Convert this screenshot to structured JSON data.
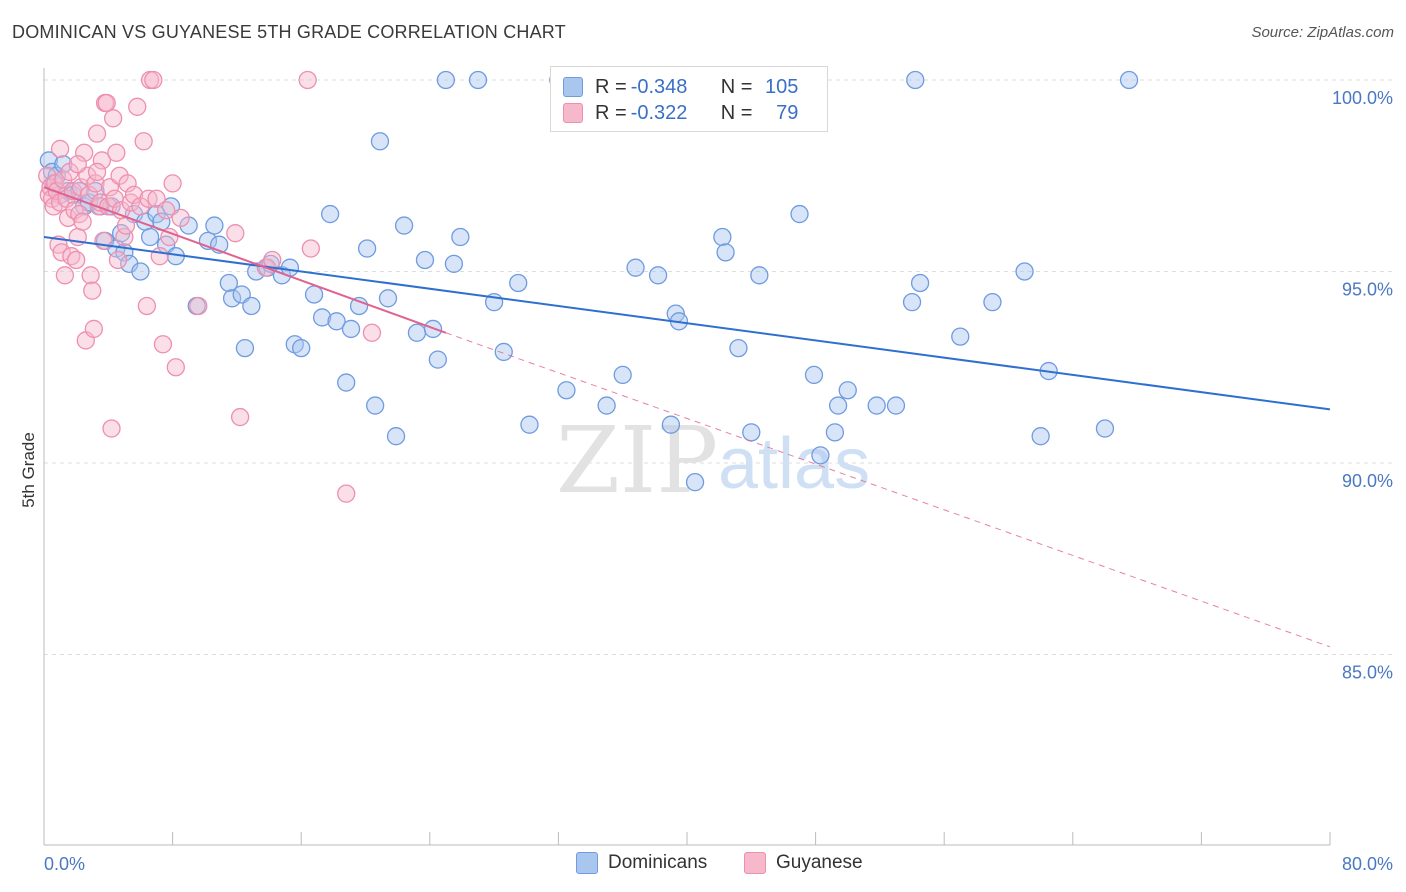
{
  "title": "DOMINICAN VS GUYANESE 5TH GRADE CORRELATION CHART",
  "source": "Source: ZipAtlas.com",
  "watermark": {
    "zip": "ZIP",
    "atlas": "atlas"
  },
  "colors": {
    "blue_fill": "#a9c6ef",
    "blue_stroke": "#6f9be0",
    "blue_line": "#2f6fd0",
    "pink_fill": "#f6b8cb",
    "pink_stroke": "#ee8fae",
    "pink_line": "#e0628f",
    "grid": "#dddddd",
    "tick_text": "#4a78c2"
  },
  "legend_top": {
    "rows": [
      {
        "r_label": "R = ",
        "r_value": "-0.348",
        "n_label": "N = ",
        "n_value": "105"
      },
      {
        "r_label": "R = ",
        "r_value": "-0.322",
        "n_label": "N = ",
        "n_value": "79"
      }
    ]
  },
  "legend_bottom": {
    "dominicans": "Dominicans",
    "guyanese": "Guyanese"
  },
  "chart_data": {
    "type": "scatter",
    "title": "DOMINICAN VS GUYANESE 5TH GRADE CORRELATION CHART",
    "xlabel": "",
    "ylabel": "5th Grade",
    "xlim": [
      0,
      80
    ],
    "ylim": [
      80.5,
      100.5
    ],
    "x_ticks": [
      "0.0%",
      "80.0%"
    ],
    "y_ticks": [
      {
        "value": 100,
        "label": "100.0%"
      },
      {
        "value": 95,
        "label": "95.0%"
      },
      {
        "value": 90,
        "label": "90.0%"
      },
      {
        "value": 85,
        "label": "85.0%"
      }
    ],
    "grid": true,
    "legend_position": "top-center",
    "series": [
      {
        "name": "Dominicans",
        "r": -0.348,
        "n": 105,
        "trend": {
          "x": [
            0,
            80
          ],
          "y": [
            95.9,
            91.4
          ]
        },
        "points": [
          [
            0.3,
            97.9
          ],
          [
            0.5,
            97.6
          ],
          [
            0.6,
            97.3
          ],
          [
            0.8,
            97.5
          ],
          [
            1.0,
            97.0
          ],
          [
            1.2,
            97.8
          ],
          [
            1.5,
            97.1
          ],
          [
            1.8,
            97.0
          ],
          [
            2.2,
            97.1
          ],
          [
            2.5,
            96.7
          ],
          [
            2.8,
            96.8
          ],
          [
            3.5,
            96.7
          ],
          [
            3.8,
            95.8
          ],
          [
            4.2,
            96.7
          ],
          [
            4.5,
            95.6
          ],
          [
            5.0,
            95.5
          ],
          [
            5.3,
            95.2
          ],
          [
            5.6,
            96.5
          ],
          [
            6.0,
            95.0
          ],
          [
            6.3,
            96.3
          ],
          [
            7.0,
            96.5
          ],
          [
            7.3,
            96.3
          ],
          [
            7.6,
            95.7
          ],
          [
            7.9,
            96.7
          ],
          [
            8.2,
            95.4
          ],
          [
            9.0,
            96.2
          ],
          [
            9.5,
            94.1
          ],
          [
            10.2,
            95.8
          ],
          [
            10.6,
            96.2
          ],
          [
            10.9,
            95.7
          ],
          [
            11.5,
            94.7
          ],
          [
            11.7,
            94.3
          ],
          [
            12.3,
            94.4
          ],
          [
            12.5,
            93.0
          ],
          [
            12.9,
            94.1
          ],
          [
            13.2,
            95.0
          ],
          [
            13.9,
            95.1
          ],
          [
            14.1,
            95.2
          ],
          [
            14.8,
            94.9
          ],
          [
            15.3,
            95.1
          ],
          [
            15.6,
            93.1
          ],
          [
            16.0,
            93.0
          ],
          [
            16.8,
            94.4
          ],
          [
            17.3,
            93.8
          ],
          [
            17.8,
            96.5
          ],
          [
            18.2,
            93.7
          ],
          [
            18.8,
            92.1
          ],
          [
            19.1,
            93.5
          ],
          [
            19.6,
            94.1
          ],
          [
            20.1,
            95.6
          ],
          [
            20.6,
            91.5
          ],
          [
            20.9,
            98.4
          ],
          [
            21.4,
            94.3
          ],
          [
            21.9,
            90.7
          ],
          [
            22.4,
            96.2
          ],
          [
            23.2,
            93.4
          ],
          [
            23.7,
            95.3
          ],
          [
            24.2,
            93.5
          ],
          [
            24.5,
            92.7
          ],
          [
            25.0,
            100.0
          ],
          [
            25.5,
            95.2
          ],
          [
            25.9,
            95.9
          ],
          [
            27.0,
            100.0
          ],
          [
            28.0,
            94.2
          ],
          [
            28.6,
            92.9
          ],
          [
            29.5,
            94.7
          ],
          [
            30.2,
            91.0
          ],
          [
            32.0,
            100.0
          ],
          [
            32.5,
            91.9
          ],
          [
            33.8,
            100.0
          ],
          [
            35.0,
            91.5
          ],
          [
            36.0,
            92.3
          ],
          [
            36.8,
            95.1
          ],
          [
            38.2,
            94.9
          ],
          [
            39.0,
            91.0
          ],
          [
            39.3,
            93.9
          ],
          [
            39.5,
            93.7
          ],
          [
            40.5,
            89.5
          ],
          [
            41.0,
            100.0
          ],
          [
            42.2,
            95.9
          ],
          [
            42.4,
            95.5
          ],
          [
            43.2,
            93.0
          ],
          [
            44.0,
            90.8
          ],
          [
            44.5,
            94.9
          ],
          [
            47.0,
            96.5
          ],
          [
            47.9,
            92.3
          ],
          [
            48.3,
            90.2
          ],
          [
            49.2,
            90.8
          ],
          [
            49.4,
            91.5
          ],
          [
            50.0,
            91.9
          ],
          [
            51.8,
            91.5
          ],
          [
            53.0,
            91.5
          ],
          [
            54.0,
            94.2
          ],
          [
            54.2,
            100.0
          ],
          [
            54.5,
            94.7
          ],
          [
            57.0,
            93.3
          ],
          [
            59.0,
            94.2
          ],
          [
            61.0,
            95.0
          ],
          [
            62.0,
            90.7
          ],
          [
            62.5,
            92.4
          ],
          [
            66.0,
            90.9
          ],
          [
            67.5,
            100.0
          ],
          [
            4.8,
            96.0
          ],
          [
            3.2,
            97.1
          ],
          [
            6.6,
            95.9
          ]
        ]
      },
      {
        "name": "Guyanese",
        "r": -0.322,
        "n": 79,
        "trend": {
          "x": [
            0,
            25
          ],
          "y": [
            97.2,
            93.4
          ],
          "dash_x": [
            25,
            80
          ],
          "dash_y": [
            93.4,
            85.2
          ]
        },
        "points": [
          [
            0.2,
            97.5
          ],
          [
            0.3,
            97.0
          ],
          [
            0.4,
            97.2
          ],
          [
            0.5,
            96.9
          ],
          [
            0.6,
            96.7
          ],
          [
            0.7,
            97.3
          ],
          [
            0.8,
            97.1
          ],
          [
            0.9,
            95.7
          ],
          [
            1.0,
            96.8
          ],
          [
            1.1,
            95.5
          ],
          [
            1.2,
            97.4
          ],
          [
            1.3,
            94.9
          ],
          [
            1.4,
            96.9
          ],
          [
            1.5,
            96.4
          ],
          [
            1.6,
            97.6
          ],
          [
            1.7,
            95.4
          ],
          [
            1.8,
            97.1
          ],
          [
            1.9,
            96.6
          ],
          [
            2.0,
            95.3
          ],
          [
            2.1,
            95.9
          ],
          [
            2.2,
            96.5
          ],
          [
            2.3,
            97.2
          ],
          [
            2.4,
            96.3
          ],
          [
            2.5,
            98.1
          ],
          [
            2.6,
            93.2
          ],
          [
            2.7,
            97.5
          ],
          [
            2.8,
            97.0
          ],
          [
            2.9,
            94.9
          ],
          [
            3.0,
            94.5
          ],
          [
            3.1,
            93.5
          ],
          [
            3.2,
            97.3
          ],
          [
            3.3,
            98.6
          ],
          [
            3.4,
            96.7
          ],
          [
            3.5,
            96.8
          ],
          [
            3.6,
            97.9
          ],
          [
            3.7,
            95.8
          ],
          [
            3.8,
            99.4
          ],
          [
            3.9,
            99.4
          ],
          [
            4.0,
            96.7
          ],
          [
            4.1,
            97.2
          ],
          [
            4.2,
            90.9
          ],
          [
            4.3,
            99.0
          ],
          [
            4.4,
            96.9
          ],
          [
            4.5,
            98.1
          ],
          [
            4.6,
            95.3
          ],
          [
            4.7,
            97.5
          ],
          [
            4.8,
            96.6
          ],
          [
            5.0,
            95.9
          ],
          [
            5.2,
            97.3
          ],
          [
            5.4,
            96.8
          ],
          [
            5.6,
            97.0
          ],
          [
            5.8,
            99.3
          ],
          [
            6.0,
            96.7
          ],
          [
            6.2,
            98.4
          ],
          [
            6.4,
            94.1
          ],
          [
            6.5,
            96.9
          ],
          [
            6.6,
            100.0
          ],
          [
            6.8,
            100.0
          ],
          [
            7.0,
            96.9
          ],
          [
            7.2,
            95.4
          ],
          [
            7.4,
            93.1
          ],
          [
            7.6,
            96.6
          ],
          [
            7.8,
            95.9
          ],
          [
            8.0,
            97.3
          ],
          [
            8.2,
            92.5
          ],
          [
            8.5,
            96.4
          ],
          [
            9.6,
            94.1
          ],
          [
            11.9,
            96.0
          ],
          [
            12.2,
            91.2
          ],
          [
            13.8,
            95.1
          ],
          [
            14.2,
            95.3
          ],
          [
            16.4,
            100.0
          ],
          [
            16.6,
            95.6
          ],
          [
            18.8,
            89.2
          ],
          [
            20.4,
            93.4
          ],
          [
            3.3,
            97.6
          ],
          [
            5.1,
            96.2
          ],
          [
            1.0,
            98.2
          ],
          [
            2.1,
            97.8
          ]
        ]
      }
    ]
  }
}
